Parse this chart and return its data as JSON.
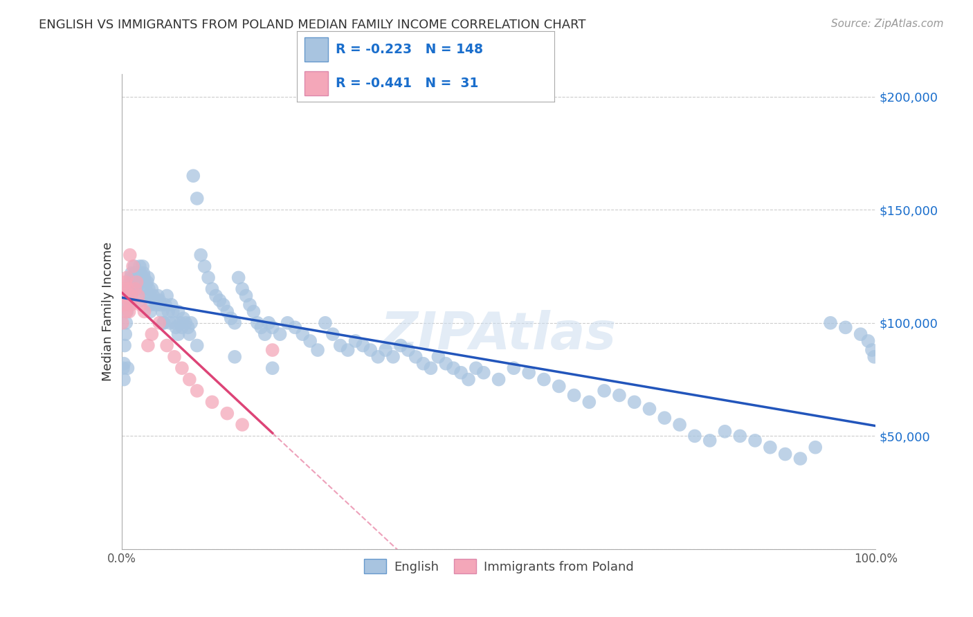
{
  "title": "ENGLISH VS IMMIGRANTS FROM POLAND MEDIAN FAMILY INCOME CORRELATION CHART",
  "source": "Source: ZipAtlas.com",
  "ylabel": "Median Family Income",
  "watermark": "ZIPAtlas",
  "english": {
    "name": "English",
    "R": -0.223,
    "N": 148,
    "marker_color": "#a8c4e0",
    "line_color": "#2255bb",
    "x": [
      0.002,
      0.003,
      0.004,
      0.005,
      0.006,
      0.007,
      0.008,
      0.009,
      0.01,
      0.011,
      0.012,
      0.013,
      0.014,
      0.015,
      0.016,
      0.017,
      0.018,
      0.019,
      0.02,
      0.022,
      0.024,
      0.025,
      0.026,
      0.027,
      0.028,
      0.029,
      0.03,
      0.031,
      0.032,
      0.033,
      0.034,
      0.035,
      0.036,
      0.037,
      0.038,
      0.04,
      0.042,
      0.044,
      0.046,
      0.048,
      0.05,
      0.052,
      0.054,
      0.056,
      0.058,
      0.06,
      0.062,
      0.064,
      0.066,
      0.068,
      0.07,
      0.072,
      0.075,
      0.078,
      0.08,
      0.082,
      0.085,
      0.088,
      0.09,
      0.092,
      0.095,
      0.1,
      0.105,
      0.11,
      0.115,
      0.12,
      0.125,
      0.13,
      0.135,
      0.14,
      0.145,
      0.15,
      0.155,
      0.16,
      0.165,
      0.17,
      0.175,
      0.18,
      0.185,
      0.19,
      0.195,
      0.2,
      0.21,
      0.22,
      0.23,
      0.24,
      0.25,
      0.26,
      0.27,
      0.28,
      0.29,
      0.3,
      0.31,
      0.32,
      0.33,
      0.34,
      0.35,
      0.36,
      0.37,
      0.38,
      0.39,
      0.4,
      0.41,
      0.42,
      0.43,
      0.44,
      0.45,
      0.46,
      0.47,
      0.48,
      0.5,
      0.52,
      0.54,
      0.56,
      0.58,
      0.6,
      0.62,
      0.64,
      0.66,
      0.68,
      0.7,
      0.72,
      0.74,
      0.76,
      0.78,
      0.8,
      0.82,
      0.84,
      0.86,
      0.88,
      0.9,
      0.92,
      0.94,
      0.96,
      0.98,
      0.99,
      0.995,
      0.998,
      0.003,
      0.008,
      0.015,
      0.025,
      0.038,
      0.055,
      0.075,
      0.1,
      0.15,
      0.2
    ],
    "y": [
      80000,
      75000,
      90000,
      95000,
      100000,
      105000,
      108000,
      112000,
      115000,
      118000,
      120000,
      122000,
      118000,
      115000,
      120000,
      125000,
      122000,
      118000,
      115000,
      120000,
      125000,
      122000,
      118000,
      120000,
      125000,
      122000,
      120000,
      118000,
      115000,
      112000,
      118000,
      120000,
      115000,
      112000,
      108000,
      115000,
      112000,
      110000,
      108000,
      112000,
      110000,
      108000,
      105000,
      100000,
      108000,
      112000,
      105000,
      100000,
      108000,
      105000,
      100000,
      98000,
      105000,
      100000,
      98000,
      102000,
      100000,
      98000,
      95000,
      100000,
      165000,
      155000,
      130000,
      125000,
      120000,
      115000,
      112000,
      110000,
      108000,
      105000,
      102000,
      100000,
      120000,
      115000,
      112000,
      108000,
      105000,
      100000,
      98000,
      95000,
      100000,
      98000,
      95000,
      100000,
      98000,
      95000,
      92000,
      88000,
      100000,
      95000,
      90000,
      88000,
      92000,
      90000,
      88000,
      85000,
      88000,
      85000,
      90000,
      88000,
      85000,
      82000,
      80000,
      85000,
      82000,
      80000,
      78000,
      75000,
      80000,
      78000,
      75000,
      80000,
      78000,
      75000,
      72000,
      68000,
      65000,
      70000,
      68000,
      65000,
      62000,
      58000,
      55000,
      50000,
      48000,
      52000,
      50000,
      48000,
      45000,
      42000,
      40000,
      45000,
      100000,
      98000,
      95000,
      92000,
      88000,
      85000,
      82000,
      80000,
      115000,
      110000,
      105000,
      100000,
      95000,
      90000,
      85000,
      80000
    ]
  },
  "poland": {
    "name": "Immigrants from Poland",
    "R": -0.441,
    "N": 31,
    "marker_color": "#f4a7b9",
    "line_color": "#dd4477",
    "x": [
      0.001,
      0.002,
      0.003,
      0.004,
      0.005,
      0.006,
      0.007,
      0.008,
      0.009,
      0.01,
      0.011,
      0.012,
      0.013,
      0.015,
      0.018,
      0.02,
      0.022,
      0.025,
      0.03,
      0.035,
      0.04,
      0.05,
      0.06,
      0.07,
      0.08,
      0.09,
      0.1,
      0.12,
      0.14,
      0.16,
      0.2
    ],
    "y": [
      100000,
      108000,
      112000,
      115000,
      118000,
      105000,
      120000,
      115000,
      110000,
      105000,
      130000,
      108000,
      112000,
      125000,
      115000,
      118000,
      112000,
      108000,
      105000,
      90000,
      95000,
      100000,
      90000,
      85000,
      80000,
      75000,
      70000,
      65000,
      60000,
      55000,
      88000
    ]
  },
  "ylim": [
    0,
    210000
  ],
  "xlim": [
    0.0,
    1.0
  ],
  "yticks": [
    0,
    50000,
    100000,
    150000,
    200000
  ],
  "ytick_labels": [
    "",
    "$50,000",
    "$100,000",
    "$150,000",
    "$200,000"
  ],
  "xticks": [
    0.0,
    0.25,
    0.5,
    0.75,
    1.0
  ],
  "xtick_labels": [
    "0.0%",
    "",
    "",
    "",
    "100.0%"
  ],
  "grid_color": "#cccccc",
  "background_color": "#ffffff",
  "title_color": "#333333",
  "axis_color": "#aaaaaa",
  "tick_label_color": "#1a6ecc",
  "legend_color": "#1a6ecc"
}
